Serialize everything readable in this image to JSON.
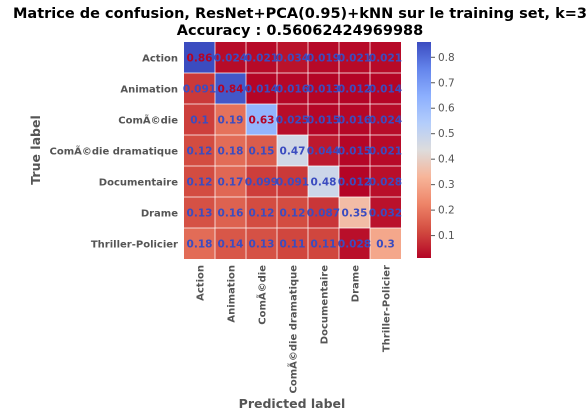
{
  "chart_data": {
    "type": "heatmap",
    "title": "Matrice de confusion, ResNet+PCA(0.95)+kNN sur le training set, k=3",
    "subtitle": "Accuracy : 0.56062424969988",
    "xlabel": "Predicted label",
    "ylabel": "True label",
    "x_categories": [
      "Action",
      "Animation",
      "ComÃ©die",
      "ComÃ©die dramatique",
      "Documentaire",
      "Drame",
      "Thriller-Policier"
    ],
    "y_categories": [
      "Action",
      "Animation",
      "ComÃ©die",
      "ComÃ©die dramatique",
      "Documentaire",
      "Drame",
      "Thriller-Policier"
    ],
    "values": [
      [
        0.86,
        0.024,
        0.021,
        0.034,
        0.019,
        0.021,
        0.021
      ],
      [
        0.091,
        0.84,
        0.014,
        0.016,
        0.013,
        0.012,
        0.014
      ],
      [
        0.1,
        0.19,
        0.63,
        0.025,
        0.015,
        0.016,
        0.024
      ],
      [
        0.12,
        0.18,
        0.15,
        0.47,
        0.044,
        0.015,
        0.021
      ],
      [
        0.12,
        0.17,
        0.099,
        0.091,
        0.48,
        0.012,
        0.028
      ],
      [
        0.13,
        0.16,
        0.12,
        0.12,
        0.087,
        0.35,
        0.032
      ],
      [
        0.18,
        0.14,
        0.13,
        0.11,
        0.11,
        0.028,
        0.3
      ]
    ],
    "labels": [
      [
        "0.86",
        "0.024",
        "0.021",
        "0.034",
        "0.019",
        "0.021",
        "0.021"
      ],
      [
        "0.091",
        "0.84",
        "0.014",
        "0.016",
        "0.013",
        "0.012",
        "0.014"
      ],
      [
        "0.1",
        "0.19",
        "0.63",
        "0.025",
        "0.015",
        "0.016",
        "0.024"
      ],
      [
        "0.12",
        "0.18",
        "0.15",
        "0.47",
        "0.044",
        "0.015",
        "0.021"
      ],
      [
        "0.12",
        "0.17",
        "0.099",
        "0.091",
        "0.48",
        "0.012",
        "0.028"
      ],
      [
        "0.13",
        "0.16",
        "0.12",
        "0.12",
        "0.087",
        "0.35",
        "0.032"
      ],
      [
        "0.18",
        "0.14",
        "0.13",
        "0.11",
        "0.11",
        "0.028",
        "0.3"
      ]
    ],
    "colormap": "coolwarm_r",
    "vmin": 0.012,
    "vmax": 0.86,
    "colorbar_ticks": [
      "0.1",
      "0.2",
      "0.3",
      "0.4",
      "0.5",
      "0.6",
      "0.7",
      "0.8"
    ],
    "grid": true,
    "colors": {
      "low": "#b40426",
      "mid": "#dddcdc",
      "high": "#3b4cc0",
      "label_low": "#b40426",
      "label_high": "#3b4cc0"
    }
  }
}
